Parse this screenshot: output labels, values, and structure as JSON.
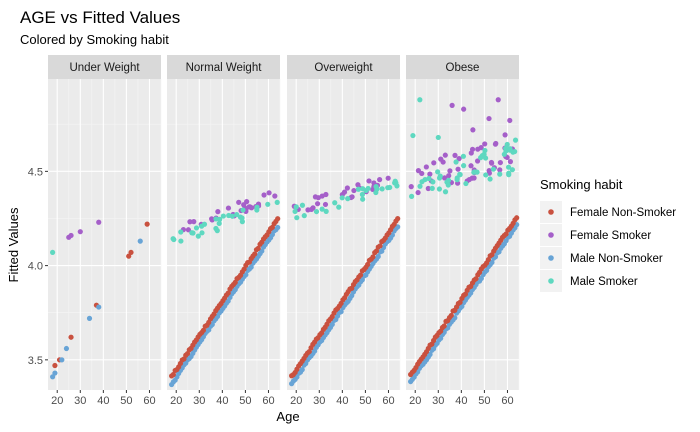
{
  "chart_data": {
    "type": "scatter",
    "title": "AGE vs Fitted Values",
    "subtitle": "Colored by Smoking habit",
    "xlabel": "Age",
    "ylabel": "Fitted Values",
    "xlim": [
      16,
      65
    ],
    "ylim": [
      3.34,
      4.99
    ],
    "x_ticks": [
      20,
      30,
      40,
      50,
      60
    ],
    "y_ticks": [
      3.5,
      4.0,
      4.5
    ],
    "grid": true,
    "legend_title": "Smoking habit",
    "legend_position": "right",
    "panels": [
      "Under Weight",
      "Normal Weight",
      "Overweight",
      "Obese"
    ],
    "series": [
      {
        "name": "Female Non-Smoker",
        "color": "#C9513F"
      },
      {
        "name": "Female Smoker",
        "color": "#A55FC9"
      },
      {
        "name": "Male Non-Smoker",
        "color": "#68A4D6"
      },
      {
        "name": "Male Smoker",
        "color": "#5ED8C0"
      }
    ],
    "trends": {
      "Under Weight": {
        "Female Non-Smoker": [
          3.39,
          0.0146
        ],
        "Male Non-Smoker": [
          3.36,
          0.0146
        ]
      },
      "Normal Weight": {
        "Female Non-Smoker": [
          3.41,
          0.0182
        ],
        "Male Non-Smoker": [
          3.37,
          0.0182
        ],
        "Female Smoker": [
          4.17,
          0.0045
        ],
        "Male Smoker": [
          4.13,
          0.0045
        ]
      },
      "Overweight": {
        "Female Non-Smoker": [
          3.41,
          0.0182
        ],
        "Male Non-Smoker": [
          3.37,
          0.0182
        ],
        "Female Smoker": [
          4.3,
          0.0035
        ],
        "Male Smoker": [
          4.27,
          0.0035
        ]
      },
      "Obese": {
        "Female Non-Smoker": [
          3.42,
          0.0182
        ],
        "Male Non-Smoker": [
          3.38,
          0.0182
        ],
        "Female Smoker": [
          4.44,
          0.004
        ],
        "Male Smoker": [
          4.4,
          0.004
        ]
      }
    },
    "points": {
      "Under Weight": [
        {
          "s": 0,
          "x": 19,
          "y": 3.47
        },
        {
          "s": 2,
          "x": 18,
          "y": 3.41
        },
        {
          "s": 2,
          "x": 19,
          "y": 3.43
        },
        {
          "s": 0,
          "x": 21,
          "y": 3.5
        },
        {
          "s": 2,
          "x": 22,
          "y": 3.5
        },
        {
          "s": 2,
          "x": 24,
          "y": 3.56
        },
        {
          "s": 0,
          "x": 26,
          "y": 3.62
        },
        {
          "s": 2,
          "x": 34,
          "y": 3.72
        },
        {
          "s": 0,
          "x": 37,
          "y": 3.79
        },
        {
          "s": 2,
          "x": 38,
          "y": 3.78
        },
        {
          "s": 0,
          "x": 51,
          "y": 4.05
        },
        {
          "s": 0,
          "x": 52,
          "y": 4.07
        },
        {
          "s": 2,
          "x": 56,
          "y": 4.13
        },
        {
          "s": 0,
          "x": 59,
          "y": 4.22
        },
        {
          "s": 3,
          "x": 18,
          "y": 4.07
        },
        {
          "s": 1,
          "x": 25,
          "y": 4.15
        },
        {
          "s": 1,
          "x": 26,
          "y": 4.16
        },
        {
          "s": 1,
          "x": 30,
          "y": 4.18
        },
        {
          "s": 1,
          "x": 38,
          "y": 4.23
        }
      ],
      "Normal Weight": [],
      "Overweight": [],
      "Obese": [
        {
          "s": 3,
          "x": 22,
          "y": 4.88
        },
        {
          "s": 1,
          "x": 36,
          "y": 4.85
        },
        {
          "s": 1,
          "x": 41,
          "y": 4.83
        },
        {
          "s": 1,
          "x": 56,
          "y": 4.88
        },
        {
          "s": 1,
          "x": 52,
          "y": 4.78
        },
        {
          "s": 1,
          "x": 61,
          "y": 4.77
        },
        {
          "s": 3,
          "x": 19,
          "y": 4.69
        },
        {
          "s": 3,
          "x": 30,
          "y": 4.68
        },
        {
          "s": 1,
          "x": 45,
          "y": 4.72
        }
      ]
    }
  }
}
